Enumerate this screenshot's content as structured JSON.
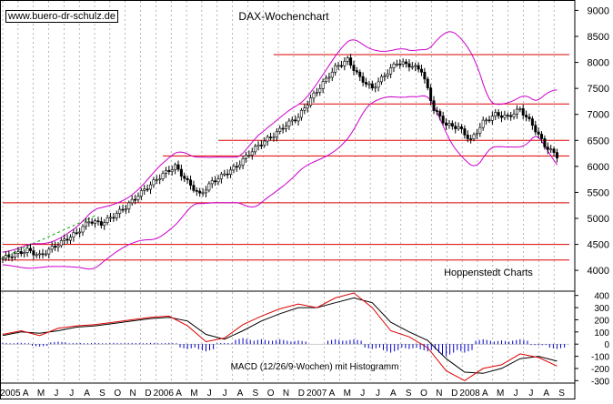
{
  "watermark": "www.buero-dr-schulz.de",
  "chart_data": [
    {
      "type": "candlestick",
      "title": "DAX-Wochenchart",
      "source_label": "Hoppenstedt Charts",
      "ylim": [
        3600,
        9200
      ],
      "y_ticks": [
        4000,
        4500,
        5000,
        5500,
        6000,
        6500,
        7000,
        7500,
        8000,
        8500,
        9000
      ],
      "x_labels": [
        "2005",
        "A",
        "M",
        "J",
        "J",
        "A",
        "S",
        "O",
        "N",
        "D",
        "2006",
        "A",
        "M",
        "J",
        "J",
        "A",
        "S",
        "O",
        "N",
        "D",
        "2007",
        "A",
        "M",
        "J",
        "J",
        "A",
        "S",
        "O",
        "N",
        "D",
        "2008",
        "A",
        "M",
        "J",
        "J",
        "A",
        "S"
      ],
      "horizontal_levels": [
        8150,
        7200,
        6500,
        6200,
        5300,
        4500,
        4200
      ],
      "grid": true,
      "colors": {
        "price": "#000000",
        "bands": "#cc00cc",
        "levels": "#dd0000",
        "trend": "#00aa00"
      },
      "series": [
        {
          "role": "weekly-close",
          "x": [
            0,
            4,
            8,
            12,
            16,
            20,
            24,
            28,
            32,
            36,
            40,
            44,
            48,
            52,
            56,
            60,
            64,
            68,
            72,
            76,
            80,
            84,
            88,
            92,
            96,
            100,
            104,
            108,
            112,
            116,
            120,
            124,
            128,
            132,
            136,
            140,
            144,
            148,
            152,
            156,
            160,
            164,
            168,
            172,
            176,
            180
          ],
          "values": [
            4230,
            4310,
            4390,
            4280,
            4430,
            4580,
            4720,
            4950,
            4900,
            5050,
            5220,
            5450,
            5650,
            5850,
            6000,
            5700,
            5450,
            5700,
            5850,
            6000,
            6250,
            6450,
            6600,
            6800,
            6950,
            7300,
            7600,
            7900,
            8050,
            7700,
            7500,
            7750,
            8000,
            7950,
            7850,
            7100,
            6800,
            6750,
            6500,
            6850,
            7000,
            6950,
            7100,
            6800,
            6400,
            6200
          ]
        }
      ]
    },
    {
      "type": "line",
      "title": "MACD (12/26/9-Wochen) mit Histogramm",
      "ylim": [
        -320,
        450
      ],
      "y_ticks": [
        -300,
        -200,
        -100,
        0,
        100,
        200,
        300,
        400
      ],
      "series": [
        {
          "role": "macd",
          "x": [
            0,
            6,
            12,
            18,
            24,
            30,
            36,
            42,
            48,
            54,
            60,
            66,
            72,
            78,
            84,
            90,
            96,
            102,
            108,
            114,
            120,
            126,
            132,
            138,
            144,
            150,
            156,
            162,
            168,
            174,
            180
          ],
          "values": [
            80,
            110,
            70,
            130,
            150,
            160,
            180,
            200,
            220,
            230,
            150,
            20,
            50,
            160,
            230,
            290,
            330,
            300,
            380,
            420,
            300,
            110,
            60,
            -30,
            -220,
            -300,
            -200,
            -170,
            -80,
            -110,
            -180
          ]
        },
        {
          "role": "signal",
          "x": [
            0,
            6,
            12,
            18,
            24,
            30,
            36,
            42,
            48,
            54,
            60,
            66,
            72,
            78,
            84,
            90,
            96,
            102,
            108,
            114,
            120,
            126,
            132,
            138,
            144,
            150,
            156,
            162,
            168,
            174,
            180
          ],
          "values": [
            70,
            100,
            90,
            110,
            140,
            150,
            170,
            190,
            210,
            220,
            190,
            80,
            40,
            110,
            190,
            250,
            300,
            300,
            340,
            380,
            340,
            180,
            100,
            30,
            -120,
            -230,
            -240,
            -200,
            -120,
            -100,
            -140
          ]
        },
        {
          "role": "histogram",
          "x": [
            0,
            6,
            12,
            18,
            24,
            30,
            36,
            42,
            48,
            54,
            60,
            66,
            72,
            78,
            84,
            90,
            96,
            102,
            108,
            114,
            120,
            126,
            132,
            138,
            144,
            150,
            156,
            162,
            168,
            174,
            180
          ],
          "values": [
            10,
            10,
            -20,
            20,
            10,
            10,
            10,
            10,
            10,
            10,
            -40,
            -60,
            10,
            50,
            40,
            40,
            30,
            0,
            40,
            40,
            -40,
            -70,
            -40,
            -60,
            -100,
            -70,
            40,
            30,
            40,
            -10,
            -40
          ]
        }
      ]
    }
  ]
}
